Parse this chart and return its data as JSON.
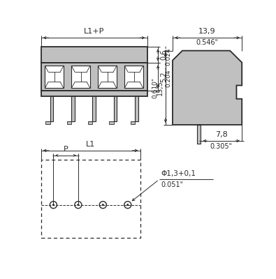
{
  "bg_color": "#ffffff",
  "line_color": "#2a2a2a",
  "gray_fill": "#c0c0c0",
  "figsize": [
    3.95,
    4.0
  ],
  "dpi": 100,
  "dim_labels": {
    "L1_P": "L1+P",
    "L1": "L1",
    "P": "P",
    "d06": "0,6",
    "d024": "0.024\"",
    "d52": "5,2",
    "d204": "0.204\"",
    "d139": "13,9",
    "d546": "0.546\"",
    "d155": "15,5",
    "d610": "0.610\"",
    "d78": "7,8",
    "d305": "0.305\"",
    "hole": "Φ1,3+0,1",
    "hole2": "0.051\""
  }
}
